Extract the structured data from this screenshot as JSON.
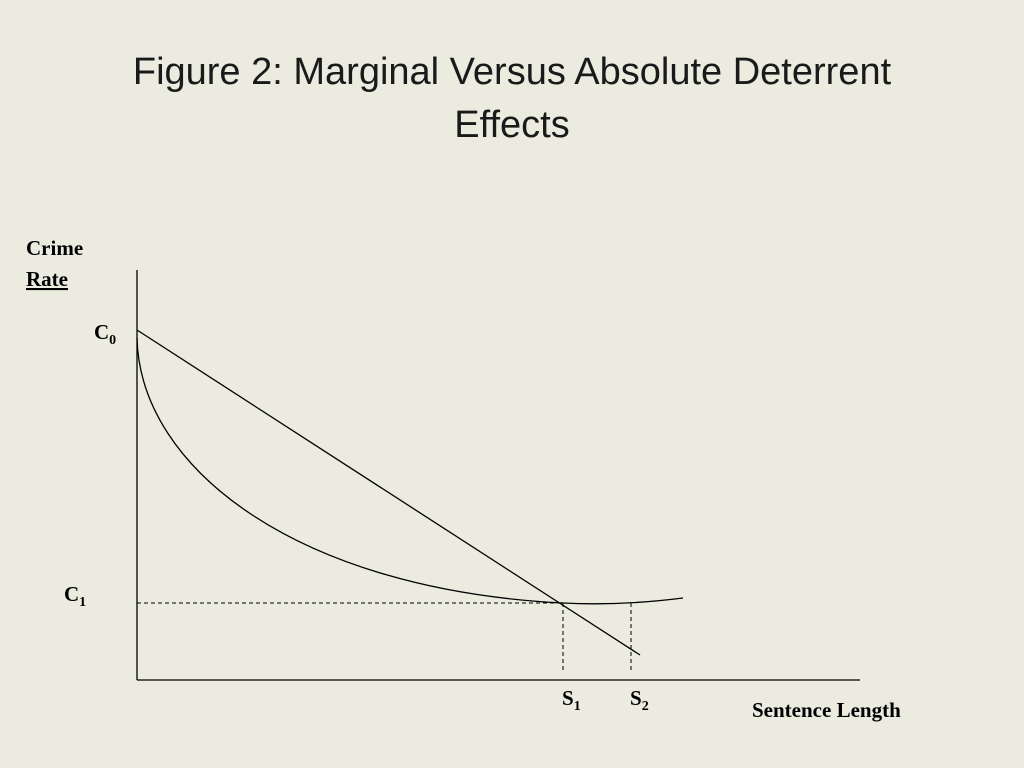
{
  "title": {
    "line1": "Figure 2: Marginal Versus Absolute Deterrent",
    "line2": "Effects"
  },
  "y_axis_label": {
    "line1": "Crime",
    "line2": "Rate"
  },
  "x_axis_label": "Sentence Length",
  "labels": {
    "c0": {
      "main": "C",
      "sub": "0"
    },
    "c1": {
      "main": "C",
      "sub": "1"
    },
    "s1": {
      "main": "S",
      "sub": "1"
    },
    "s2": {
      "main": "S",
      "sub": "2"
    }
  }
}
